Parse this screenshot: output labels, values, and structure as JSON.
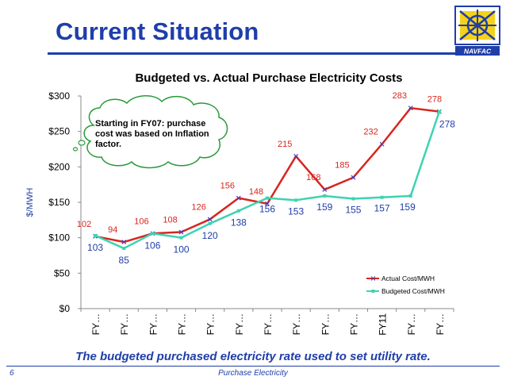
{
  "slide": {
    "title": "Current Situation",
    "caption": "The budgeted purchased electricity rate used to set utility rate.",
    "slide_number": "6",
    "footer": "Purchase Electricity",
    "logo_text": "NAVFAC",
    "accent_color": "#1f3ea8"
  },
  "chart_data": {
    "type": "line",
    "title": "Budgeted vs. Actual Purchase Electricity Costs",
    "xlabel": "",
    "ylabel": "$/MWH",
    "categories": [
      "FY…",
      "FY…",
      "FY…",
      "FY…",
      "FY…",
      "FY…",
      "FY…",
      "FY…",
      "FY…",
      "FY…",
      "FY11",
      "FY…",
      "FY…"
    ],
    "yticks": [
      "$0",
      "$50",
      "$100",
      "$150",
      "$200",
      "$250",
      "$300"
    ],
    "ylim": [
      0,
      300
    ],
    "grid": false,
    "legend_position": "bottom-right",
    "series": [
      {
        "name": "Actual Cost/MWH",
        "color": "#d7261e",
        "values": [
          102,
          94,
          106,
          108,
          126,
          156,
          148,
          215,
          168,
          185,
          232,
          283,
          278
        ],
        "labels": [
          "102",
          "94",
          "106",
          "108",
          "126",
          "156",
          "148",
          "215",
          "168",
          "185",
          "232",
          "283",
          "278"
        ]
      },
      {
        "name": "Budgeted Cost/MWH",
        "color": "#3dd3b0",
        "values": [
          103,
          85,
          106,
          100,
          120,
          138,
          156,
          153,
          159,
          155,
          157,
          159,
          278
        ],
        "labels": [
          "103",
          "85",
          "106",
          "100",
          "120",
          "138",
          "156",
          "153",
          "159",
          "155",
          "157",
          "159",
          "278"
        ]
      }
    ],
    "annotation": "Starting in FY07: purchase cost was based on Inflation factor."
  }
}
